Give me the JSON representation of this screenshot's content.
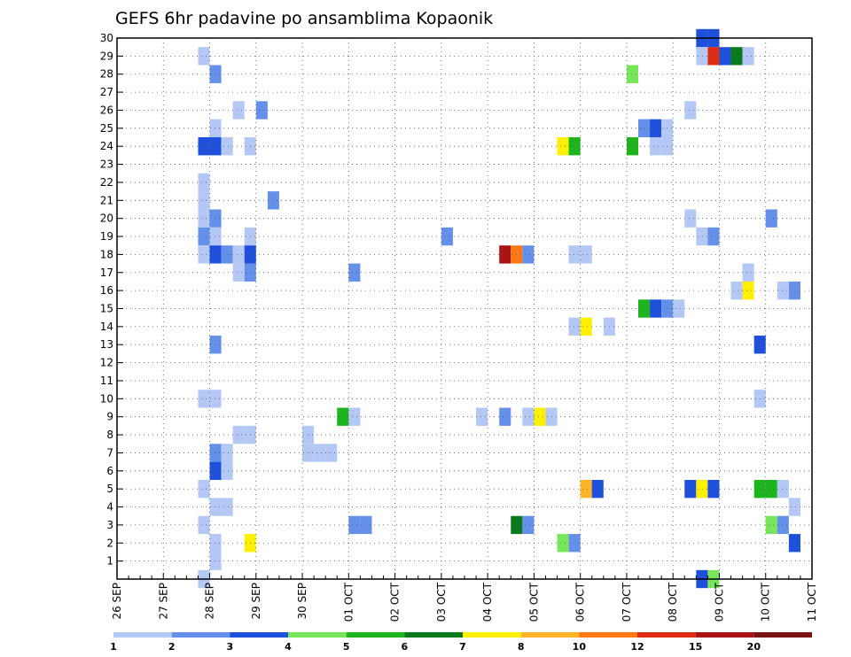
{
  "chart_data": {
    "type": "heatmap",
    "title": "GEFS 6hr padavine po ansamblima Kopaonik",
    "xlabel": "",
    "ylabel": "",
    "ylim": [
      0,
      30
    ],
    "y_ticks": [
      1,
      2,
      3,
      4,
      5,
      6,
      7,
      8,
      9,
      10,
      11,
      12,
      13,
      14,
      15,
      16,
      17,
      18,
      19,
      20,
      21,
      22,
      23,
      24,
      25,
      26,
      27,
      28,
      29,
      30
    ],
    "x_day_labels": [
      "26 SEP",
      "27 SEP",
      "28 SEP",
      "29 SEP",
      "30 SEP",
      "01 OCT",
      "02 OCT",
      "03 OCT",
      "04 OCT",
      "05 OCT",
      "06 OCT",
      "07 OCT",
      "08 OCT",
      "09 OCT",
      "10 OCT",
      "11 OCT"
    ],
    "x_units": "6-hour steps from 26 SEP 00Z",
    "grid": true,
    "legend": {
      "placement": "bottom",
      "thresholds": [
        "1",
        "2",
        "3",
        "4",
        "5",
        "6",
        "7",
        "8",
        "10",
        "12",
        "15",
        "20"
      ],
      "colors": [
        "#b4c8f5",
        "#6490ea",
        "#1e50dc",
        "#78e65a",
        "#1eb41e",
        "#0a7a1e",
        "#fff000",
        "#ffb428",
        "#ff7814",
        "#dc2d14",
        "#aa1414",
        "#781414"
      ]
    },
    "cells": [
      {
        "t": 7,
        "m": 29,
        "c": 0
      },
      {
        "t": 8,
        "m": 28,
        "c": 1
      },
      {
        "t": 10,
        "m": 26,
        "c": 0
      },
      {
        "t": 12,
        "m": 26,
        "c": 1
      },
      {
        "t": 8,
        "m": 25,
        "c": 0
      },
      {
        "t": 7,
        "m": 24,
        "c": 2
      },
      {
        "t": 8,
        "m": 24,
        "c": 2
      },
      {
        "t": 9,
        "m": 24,
        "c": 0
      },
      {
        "t": 11,
        "m": 24,
        "c": 0
      },
      {
        "t": 7,
        "m": 22,
        "c": 0
      },
      {
        "t": 7,
        "m": 21,
        "c": 0
      },
      {
        "t": 13,
        "m": 21,
        "c": 1
      },
      {
        "t": 7,
        "m": 20,
        "c": 0
      },
      {
        "t": 8,
        "m": 20,
        "c": 1
      },
      {
        "t": 7,
        "m": 19,
        "c": 1
      },
      {
        "t": 8,
        "m": 19,
        "c": 0
      },
      {
        "t": 11,
        "m": 19,
        "c": 0
      },
      {
        "t": 7,
        "m": 18,
        "c": 0
      },
      {
        "t": 8,
        "m": 18,
        "c": 2
      },
      {
        "t": 9,
        "m": 18,
        "c": 1
      },
      {
        "t": 10,
        "m": 18,
        "c": 0
      },
      {
        "t": 11,
        "m": 18,
        "c": 2
      },
      {
        "t": 10,
        "m": 17,
        "c": 0
      },
      {
        "t": 11,
        "m": 17,
        "c": 1
      },
      {
        "t": 8,
        "m": 13,
        "c": 1
      },
      {
        "t": 7,
        "m": 10,
        "c": 0
      },
      {
        "t": 8,
        "m": 10,
        "c": 0
      },
      {
        "t": 10,
        "m": 8,
        "c": 0
      },
      {
        "t": 11,
        "m": 8,
        "c": 0
      },
      {
        "t": 8,
        "m": 7,
        "c": 1
      },
      {
        "t": 9,
        "m": 7,
        "c": 0
      },
      {
        "t": 8,
        "m": 6,
        "c": 2
      },
      {
        "t": 9,
        "m": 6,
        "c": 0
      },
      {
        "t": 7,
        "m": 5,
        "c": 0
      },
      {
        "t": 8,
        "m": 4,
        "c": 0
      },
      {
        "t": 9,
        "m": 4,
        "c": 0
      },
      {
        "t": 7,
        "m": 3,
        "c": 0
      },
      {
        "t": 11,
        "m": 2,
        "c": 6
      },
      {
        "t": 8,
        "m": 2,
        "c": 0
      },
      {
        "t": 8,
        "m": 1,
        "c": 0
      },
      {
        "t": 7,
        "m": 0,
        "c": 0
      },
      {
        "t": 16,
        "m": 8,
        "c": 0
      },
      {
        "t": 16,
        "m": 7,
        "c": 0
      },
      {
        "t": 17,
        "m": 7,
        "c": 0
      },
      {
        "t": 18,
        "m": 7,
        "c": 0
      },
      {
        "t": 19,
        "m": 9,
        "c": 4
      },
      {
        "t": 20,
        "m": 9,
        "c": 0
      },
      {
        "t": 20,
        "m": 17,
        "c": 1
      },
      {
        "t": 20,
        "m": 3,
        "c": 1
      },
      {
        "t": 21,
        "m": 3,
        "c": 1
      },
      {
        "t": 28,
        "m": 19,
        "c": 1
      },
      {
        "t": 31,
        "m": 9,
        "c": 0
      },
      {
        "t": 33,
        "m": 9,
        "c": 1
      },
      {
        "t": 33,
        "m": 18,
        "c": 10
      },
      {
        "t": 34,
        "m": 18,
        "c": 8
      },
      {
        "t": 35,
        "m": 18,
        "c": 1
      },
      {
        "t": 34,
        "m": 3,
        "c": 5
      },
      {
        "t": 35,
        "m": 3,
        "c": 1
      },
      {
        "t": 35,
        "m": 9,
        "c": 0
      },
      {
        "t": 36,
        "m": 9,
        "c": 6
      },
      {
        "t": 37,
        "m": 9,
        "c": 0
      },
      {
        "t": 38,
        "m": 24,
        "c": 6
      },
      {
        "t": 39,
        "m": 24,
        "c": 4
      },
      {
        "t": 38,
        "m": 2,
        "c": 3
      },
      {
        "t": 39,
        "m": 2,
        "c": 1
      },
      {
        "t": 39,
        "m": 18,
        "c": 0
      },
      {
        "t": 40,
        "m": 18,
        "c": 0
      },
      {
        "t": 39,
        "m": 14,
        "c": 0
      },
      {
        "t": 40,
        "m": 14,
        "c": 6
      },
      {
        "t": 42,
        "m": 14,
        "c": 0
      },
      {
        "t": 40,
        "m": 5,
        "c": 7
      },
      {
        "t": 41,
        "m": 5,
        "c": 2
      },
      {
        "t": 44,
        "m": 28,
        "c": 3
      },
      {
        "t": 44,
        "m": 24,
        "c": 4
      },
      {
        "t": 45,
        "m": 25,
        "c": 1
      },
      {
        "t": 46,
        "m": 25,
        "c": 2
      },
      {
        "t": 47,
        "m": 25,
        "c": 0
      },
      {
        "t": 46,
        "m": 24,
        "c": 0
      },
      {
        "t": 47,
        "m": 24,
        "c": 0
      },
      {
        "t": 45,
        "m": 15,
        "c": 4
      },
      {
        "t": 46,
        "m": 15,
        "c": 2
      },
      {
        "t": 47,
        "m": 15,
        "c": 1
      },
      {
        "t": 48,
        "m": 15,
        "c": 0
      },
      {
        "t": 49,
        "m": 26,
        "c": 0
      },
      {
        "t": 49,
        "m": 20,
        "c": 0
      },
      {
        "t": 50,
        "m": 30,
        "c": 2
      },
      {
        "t": 51,
        "m": 30,
        "c": 2
      },
      {
        "t": 50,
        "m": 29,
        "c": 0
      },
      {
        "t": 51,
        "m": 29,
        "c": 9
      },
      {
        "t": 52,
        "m": 29,
        "c": 2
      },
      {
        "t": 53,
        "m": 29,
        "c": 5
      },
      {
        "t": 54,
        "m": 29,
        "c": 0
      },
      {
        "t": 50,
        "m": 19,
        "c": 0
      },
      {
        "t": 51,
        "m": 19,
        "c": 1
      },
      {
        "t": 49,
        "m": 5,
        "c": 2
      },
      {
        "t": 50,
        "m": 5,
        "c": 6
      },
      {
        "t": 51,
        "m": 5,
        "c": 2
      },
      {
        "t": 50,
        "m": 0,
        "c": 2
      },
      {
        "t": 51,
        "m": 0,
        "c": 3
      },
      {
        "t": 54,
        "m": 17,
        "c": 0
      },
      {
        "t": 53,
        "m": 16,
        "c": 0
      },
      {
        "t": 54,
        "m": 16,
        "c": 6
      },
      {
        "t": 55,
        "m": 13,
        "c": 2
      },
      {
        "t": 55,
        "m": 10,
        "c": 0
      },
      {
        "t": 55,
        "m": 5,
        "c": 4
      },
      {
        "t": 56,
        "m": 5,
        "c": 4
      },
      {
        "t": 57,
        "m": 5,
        "c": 0
      },
      {
        "t": 56,
        "m": 3,
        "c": 3
      },
      {
        "t": 57,
        "m": 3,
        "c": 1
      },
      {
        "t": 56,
        "m": 20,
        "c": 1
      },
      {
        "t": 57,
        "m": 16,
        "c": 0
      },
      {
        "t": 58,
        "m": 16,
        "c": 1
      },
      {
        "t": 58,
        "m": 4,
        "c": 0
      },
      {
        "t": 58,
        "m": 2,
        "c": 2
      }
    ]
  }
}
